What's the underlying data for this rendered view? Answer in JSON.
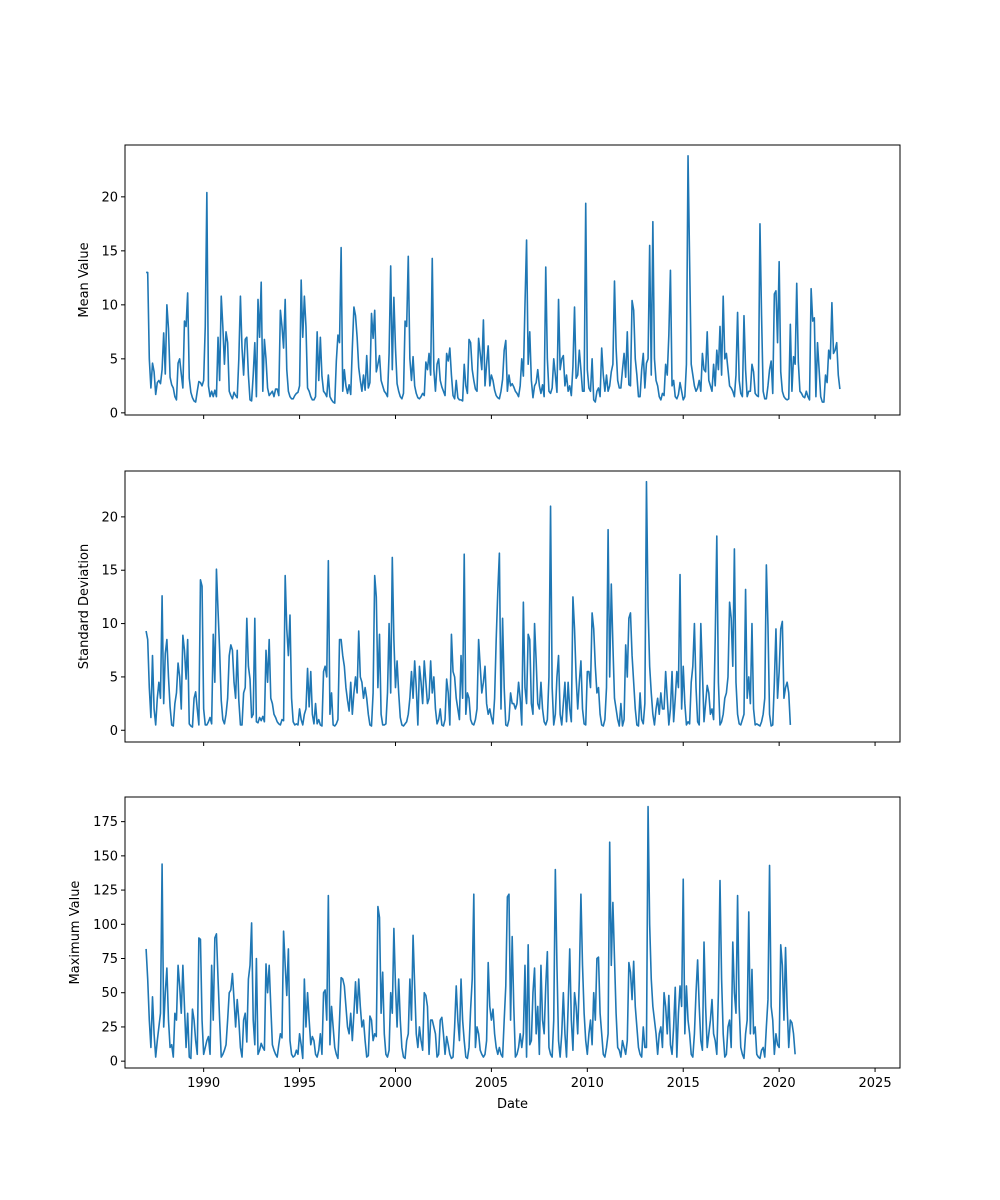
{
  "chart_data": [
    {
      "type": "line",
      "ylabel": "Mean Value",
      "xlabel": "",
      "xlim": [
        1985.9,
        2026.3
      ],
      "ylim": [
        -0.2,
        24.8
      ],
      "yticks": [
        0,
        5,
        10,
        15,
        20
      ],
      "xticks": [
        1990,
        1995,
        2000,
        2005,
        2010,
        2015,
        2020,
        2025
      ],
      "xtick_labels_visible": false,
      "line_color": "#1f77b4",
      "x_start": 1987.0,
      "x_step": 0.0833333,
      "values": [
        13.0,
        13.0,
        5.0,
        2.3,
        4.6,
        3.8,
        1.7,
        2.8,
        3.0,
        2.7,
        4.0,
        7.4,
        3.6,
        10.0,
        7.8,
        3.3,
        2.6,
        2.3,
        1.5,
        1.2,
        4.6,
        5.0,
        3.6,
        2.3,
        8.5,
        8.0,
        11.1,
        3.2,
        1.9,
        1.4,
        1.1,
        1.0,
        2.0,
        2.9,
        2.8,
        2.5,
        3.0,
        8.0,
        20.4,
        2.5,
        1.5,
        2.0,
        1.5,
        2.1,
        1.5,
        7.0,
        3.0,
        10.8,
        8.0,
        4.5,
        7.5,
        6.5,
        2.0,
        1.6,
        1.3,
        1.9,
        1.6,
        1.4,
        5.0,
        10.8,
        6.0,
        3.5,
        6.8,
        7.0,
        3.5,
        1.2,
        1.1,
        3.5,
        6.5,
        1.5,
        10.5,
        7.0,
        12.1,
        2.0,
        6.8,
        5.0,
        2.3,
        1.6,
        1.8,
        2.0,
        1.5,
        2.2,
        2.2,
        1.6,
        9.5,
        8.0,
        6.0,
        10.5,
        4.0,
        2.0,
        1.5,
        1.3,
        1.3,
        1.6,
        1.8,
        1.9,
        2.5,
        12.3,
        7.0,
        10.8,
        8.0,
        2.3,
        2.0,
        1.5,
        1.2,
        1.2,
        1.5,
        7.5,
        3.0,
        7.0,
        3.4,
        2.0,
        1.8,
        1.5,
        3.5,
        1.5,
        1.2,
        1.0,
        0.9,
        4.8,
        7.2,
        6.5,
        15.3,
        2.0,
        4.0,
        2.5,
        1.8,
        2.6,
        1.7,
        6.0,
        9.8,
        9.0,
        7.0,
        4.2,
        3.0,
        2.0,
        3.5,
        2.1,
        5.3,
        2.3,
        2.8,
        9.2,
        6.9,
        9.5,
        3.8,
        4.5,
        5.3,
        3.0,
        2.5,
        2.0,
        1.8,
        1.5,
        5.5,
        13.6,
        4.0,
        10.7,
        6.0,
        2.7,
        2.0,
        1.5,
        1.3,
        1.8,
        8.5,
        8.0,
        14.5,
        5.0,
        3.0,
        5.2,
        2.5,
        1.8,
        1.4,
        1.3,
        1.5,
        1.8,
        1.6,
        4.7,
        4.0,
        5.5,
        3.5,
        14.3,
        4.0,
        2.0,
        4.5,
        5.0,
        3.0,
        2.4,
        2.0,
        1.6,
        5.5,
        4.8,
        6.0,
        3.5,
        1.6,
        1.3,
        3.0,
        1.4,
        1.2,
        1.2,
        1.1,
        4.5,
        2.5,
        1.8,
        6.8,
        6.5,
        4.0,
        3.0,
        2.2,
        2.0,
        6.9,
        5.5,
        4.0,
        8.6,
        2.5,
        4.5,
        6.2,
        2.5,
        3.5,
        3.0,
        2.1,
        1.6,
        1.4,
        1.3,
        2.0,
        3.1,
        5.8,
        6.7,
        2.0,
        3.5,
        2.5,
        2.7,
        2.4,
        2.0,
        1.8,
        1.5,
        2.5,
        5.0,
        3.4,
        10.0,
        16.0,
        4.5,
        7.5,
        3.0,
        1.4,
        2.5,
        2.8,
        4.0,
        2.5,
        1.8,
        2.6,
        1.5,
        13.5,
        5.0,
        2.0,
        1.8,
        2.3,
        5.0,
        3.5,
        1.9,
        10.5,
        4.0,
        5.0,
        5.3,
        2.5,
        3.5,
        2.0,
        2.5,
        1.6,
        4.3,
        9.8,
        3.2,
        3.5,
        5.8,
        4.0,
        2.0,
        2.0,
        19.4,
        4.0,
        2.3,
        2.0,
        5.0,
        1.2,
        1.0,
        2.0,
        2.3,
        1.5,
        6.0,
        3.5,
        2.0,
        3.5,
        2.0,
        2.5,
        3.8,
        4.5,
        12.2,
        6.0,
        3.0,
        2.3,
        2.3,
        4.0,
        5.5,
        3.3,
        7.5,
        2.6,
        2.5,
        10.4,
        9.5,
        5.0,
        3.5,
        1.5,
        1.5,
        4.0,
        5.5,
        2.3,
        4.6,
        5.0,
        15.5,
        3.5,
        17.7,
        5.0,
        3.0,
        2.5,
        1.5,
        1.2,
        1.8,
        1.6,
        4.5,
        3.5,
        7.2,
        13.2,
        2.5,
        3.0,
        1.5,
        1.3,
        1.7,
        2.8,
        2.0,
        1.2,
        1.5,
        4.5,
        23.8,
        14.0,
        4.5,
        3.5,
        2.5,
        2.0,
        2.3,
        3.0,
        2.0,
        5.5,
        4.0,
        3.8,
        7.5,
        3.0,
        2.5,
        2.0,
        4.5,
        2.5,
        5.8,
        4.0,
        8.0,
        3.5,
        10.8,
        5.0,
        5.5,
        4.0,
        2.5,
        2.3,
        2.0,
        1.5,
        3.5,
        9.3,
        3.0,
        1.8,
        1.5,
        9.0,
        4.0,
        1.5,
        2.0,
        2.0,
        4.5,
        3.8,
        1.8,
        1.6,
        1.5,
        17.5,
        9.0,
        2.0,
        1.3,
        1.3,
        2.5,
        4.0,
        4.8,
        1.8,
        11.0,
        11.3,
        6.5,
        14.0,
        3.8,
        2.0,
        1.5,
        1.3,
        1.2,
        1.3,
        8.2,
        2.0,
        5.2,
        4.5,
        12.0,
        4.7,
        2.0,
        1.8,
        1.5,
        1.4,
        2.0,
        1.5,
        1.2,
        11.5,
        8.5,
        8.8,
        1.5,
        6.5,
        4.0,
        1.5,
        1.0,
        1.0,
        3.5,
        2.8,
        5.8,
        5.0,
        10.2,
        5.5,
        5.8,
        6.5,
        3.5,
        2.2
      ]
    },
    {
      "type": "line",
      "ylabel": "Standard Deviation",
      "xlabel": "",
      "xlim": [
        1985.9,
        2026.3
      ],
      "ylim": [
        -1.1,
        24.3
      ],
      "yticks": [
        0,
        5,
        10,
        15,
        20
      ],
      "xticks": [
        1990,
        1995,
        2000,
        2005,
        2010,
        2015,
        2020,
        2025
      ],
      "xtick_labels_visible": false,
      "line_color": "#1f77b4",
      "x_start": 1987.0,
      "x_step": 0.0833333,
      "values": [
        9.3,
        8.5,
        4.0,
        1.2,
        7.0,
        2.0,
        0.5,
        3.0,
        4.5,
        3.0,
        12.6,
        2.5,
        7.2,
        8.5,
        5.0,
        2.2,
        0.5,
        0.4,
        2.5,
        3.5,
        6.3,
        5.0,
        2.0,
        8.9,
        7.5,
        4.8,
        8.5,
        0.6,
        0.4,
        0.3,
        3.0,
        3.6,
        2.0,
        0.5,
        14.1,
        13.5,
        2.0,
        0.5,
        0.5,
        0.8,
        1.2,
        0.6,
        9.0,
        4.5,
        15.1,
        11.2,
        7.5,
        2.8,
        1.0,
        0.6,
        1.5,
        3.0,
        7.0,
        8.0,
        7.5,
        4.5,
        3.0,
        7.5,
        2.8,
        0.5,
        0.5,
        3.5,
        4.0,
        10.5,
        6.0,
        4.8,
        1.2,
        1.5,
        10.5,
        0.8,
        0.7,
        1.2,
        0.9,
        1.3,
        0.8,
        7.5,
        4.5,
        8.5,
        3.0,
        2.5,
        1.5,
        1.2,
        0.8,
        0.6,
        0.5,
        1.0,
        0.9,
        14.5,
        9.5,
        7.0,
        10.8,
        3.0,
        0.8,
        0.5,
        0.6,
        0.5,
        2.0,
        1.0,
        0.5,
        1.5,
        2.0,
        5.8,
        2.2,
        5.5,
        1.5,
        0.6,
        2.5,
        0.6,
        1.0,
        0.5,
        0.4,
        5.5,
        6.0,
        5.0,
        15.9,
        1.5,
        3.5,
        0.5,
        0.4,
        0.6,
        1.0,
        8.5,
        8.5,
        7.0,
        6.0,
        4.0,
        2.8,
        1.8,
        4.5,
        1.5,
        3.5,
        5.0,
        3.5,
        9.3,
        5.0,
        4.5,
        3.0,
        4.0,
        3.0,
        1.5,
        0.5,
        0.4,
        3.5,
        14.5,
        12.5,
        4.0,
        9.0,
        1.5,
        0.5,
        0.5,
        0.6,
        3.5,
        10.0,
        3.5,
        16.2,
        8.5,
        4.0,
        6.5,
        3.5,
        1.2,
        0.5,
        0.4,
        0.6,
        0.8,
        1.5,
        3.0,
        5.5,
        3.0,
        6.5,
        4.0,
        0.5,
        6.0,
        4.5,
        2.5,
        6.5,
        4.5,
        2.5,
        3.0,
        6.5,
        3.5,
        5.0,
        2.0,
        0.6,
        1.0,
        2.0,
        0.5,
        0.4,
        1.0,
        4.8,
        3.5,
        0.5,
        9.0,
        5.5,
        5.0,
        3.0,
        2.0,
        1.0,
        7.0,
        3.0,
        16.5,
        1.5,
        3.5,
        3.0,
        1.0,
        0.6,
        0.5,
        1.0,
        2.0,
        8.5,
        6.0,
        3.5,
        4.5,
        6.0,
        2.5,
        1.5,
        2.0,
        1.2,
        0.6,
        3.0,
        8.5,
        13.0,
        16.6,
        2.0,
        10.5,
        4.0,
        0.5,
        0.4,
        1.0,
        3.5,
        2.5,
        2.5,
        2.0,
        2.5,
        4.5,
        3.0,
        0.5,
        12.0,
        4.0,
        2.5,
        9.0,
        8.5,
        2.5,
        1.5,
        10.0,
        6.5,
        2.5,
        2.0,
        4.5,
        2.0,
        0.8,
        0.5,
        1.0,
        5.0,
        21.0,
        4.0,
        0.5,
        1.5,
        5.0,
        7.0,
        1.5,
        0.5,
        2.5,
        4.5,
        0.8,
        4.5,
        2.0,
        0.8,
        12.5,
        9.5,
        5.0,
        2.0,
        4.5,
        6.5,
        2.0,
        0.6,
        0.5,
        5.5,
        5.5,
        4.0,
        11.0,
        9.5,
        6.0,
        3.5,
        4.0,
        1.5,
        0.5,
        0.4,
        1.0,
        4.0,
        18.8,
        5.0,
        13.7,
        8.0,
        3.0,
        2.0,
        1.0,
        0.4,
        2.5,
        0.4,
        1.0,
        8.0,
        5.0,
        10.5,
        11.0,
        7.0,
        4.5,
        2.0,
        0.5,
        0.4,
        3.5,
        1.0,
        0.6,
        2.5,
        23.3,
        11.5,
        6.0,
        3.5,
        1.5,
        0.5,
        2.0,
        3.0,
        1.5,
        3.5,
        2.0,
        2.0,
        5.5,
        3.0,
        0.5,
        2.0,
        5.5,
        0.8,
        3.0,
        5.5,
        4.0,
        14.6,
        2.0,
        6.0,
        2.5,
        0.5,
        0.8,
        0.6,
        4.5,
        6.0,
        10.0,
        4.0,
        0.8,
        0.5,
        10.0,
        5.5,
        0.8,
        2.5,
        4.2,
        3.5,
        1.5,
        2.0,
        1.0,
        8.5,
        18.2,
        4.5,
        0.5,
        0.8,
        1.5,
        3.0,
        3.5,
        5.0,
        12.0,
        10.5,
        6.0,
        17.0,
        4.5,
        1.5,
        0.6,
        0.5,
        1.0,
        1.5,
        13.2,
        3.0,
        5.0,
        2.5,
        10.0,
        2.0,
        0.5,
        0.6,
        0.5,
        0.4,
        0.8,
        1.5,
        3.0,
        15.5,
        9.8,
        1.5,
        0.4,
        0.5,
        4.5,
        9.5,
        3.0,
        5.5,
        9.5,
        10.2,
        3.0,
        4.0,
        4.5,
        3.5,
        0.5
      ]
    },
    {
      "type": "line",
      "ylabel": "Maximum Value",
      "xlabel": "Date",
      "xlim": [
        1985.9,
        2026.3
      ],
      "ylim": [
        -5,
        193
      ],
      "yticks": [
        0,
        25,
        50,
        75,
        100,
        125,
        150,
        175
      ],
      "xticks": [
        1990,
        1995,
        2000,
        2005,
        2010,
        2015,
        2020,
        2025
      ],
      "xtick_labels_visible": true,
      "line_color": "#1f77b4",
      "x_start": 1987.0,
      "x_step": 0.0833333,
      "values": [
        82,
        60,
        30,
        10,
        47,
        20,
        3,
        15,
        25,
        35,
        144,
        25,
        50,
        68,
        30,
        10,
        12,
        3,
        35,
        30,
        70,
        55,
        35,
        70,
        40,
        10,
        35,
        3,
        2,
        38,
        30,
        15,
        5,
        90,
        89,
        30,
        5,
        10,
        15,
        18,
        5,
        70,
        30,
        90,
        93,
        60,
        30,
        3,
        5,
        8,
        12,
        30,
        50,
        52,
        64,
        45,
        25,
        45,
        30,
        10,
        3,
        30,
        35,
        14,
        60,
        70,
        101,
        30,
        12,
        75,
        5,
        8,
        13,
        10,
        8,
        71,
        50,
        70,
        40,
        12,
        8,
        5,
        3,
        12,
        20,
        17,
        95,
        70,
        48,
        82,
        15,
        5,
        3,
        4,
        8,
        5,
        20,
        12,
        2,
        60,
        25,
        50,
        30,
        12,
        18,
        15,
        5,
        3,
        8,
        20,
        5,
        50,
        52,
        30,
        121,
        12,
        40,
        25,
        10,
        5,
        2,
        30,
        61,
        60,
        55,
        40,
        25,
        20,
        35,
        15,
        35,
        58,
        35,
        60,
        40,
        25,
        30,
        15,
        3,
        4,
        33,
        30,
        15,
        20,
        18,
        113,
        105,
        35,
        65,
        20,
        5,
        3,
        8,
        50,
        35,
        97,
        55,
        25,
        60,
        30,
        10,
        3,
        2,
        15,
        20,
        60,
        30,
        92,
        55,
        20,
        10,
        25,
        15,
        8,
        50,
        48,
        40,
        5,
        30,
        30,
        25,
        20,
        3,
        5,
        30,
        32,
        20,
        5,
        18,
        12,
        5,
        2,
        3,
        25,
        55,
        30,
        15,
        60,
        30,
        15,
        3,
        2,
        10,
        38,
        60,
        122,
        10,
        25,
        20,
        8,
        5,
        3,
        5,
        15,
        72,
        40,
        30,
        38,
        20,
        10,
        5,
        10,
        5,
        3,
        30,
        55,
        120,
        122,
        30,
        91,
        40,
        3,
        5,
        10,
        20,
        10,
        20,
        70,
        3,
        85,
        12,
        15,
        50,
        68,
        20,
        40,
        5,
        70,
        30,
        20,
        55,
        80,
        10,
        5,
        3,
        30,
        140,
        70,
        15,
        3,
        20,
        50,
        20,
        3,
        40,
        82,
        30,
        8,
        50,
        40,
        20,
        60,
        122,
        70,
        35,
        15,
        5,
        20,
        30,
        12,
        50,
        30,
        75,
        76,
        35,
        20,
        5,
        3,
        10,
        20,
        160,
        70,
        116,
        75,
        35,
        10,
        8,
        3,
        15,
        10,
        5,
        15,
        72,
        65,
        45,
        73,
        40,
        25,
        10,
        5,
        3,
        25,
        10,
        10,
        186,
        100,
        60,
        40,
        30,
        20,
        5,
        20,
        25,
        10,
        50,
        40,
        20,
        48,
        12,
        5,
        25,
        54,
        3,
        35,
        55,
        40,
        133,
        20,
        55,
        30,
        20,
        5,
        3,
        20,
        50,
        74,
        40,
        15,
        8,
        87,
        40,
        10,
        20,
        30,
        45,
        20,
        15,
        5,
        50,
        132,
        60,
        20,
        3,
        5,
        25,
        30,
        10,
        87,
        50,
        35,
        121,
        40,
        10,
        5,
        2,
        20,
        30,
        109,
        20,
        67,
        20,
        25,
        5,
        3,
        2,
        8,
        10,
        3,
        25,
        45,
        143,
        40,
        30,
        5,
        20,
        12,
        10,
        85,
        70,
        30,
        83,
        40,
        10,
        30,
        28,
        20,
        5
      ]
    }
  ]
}
